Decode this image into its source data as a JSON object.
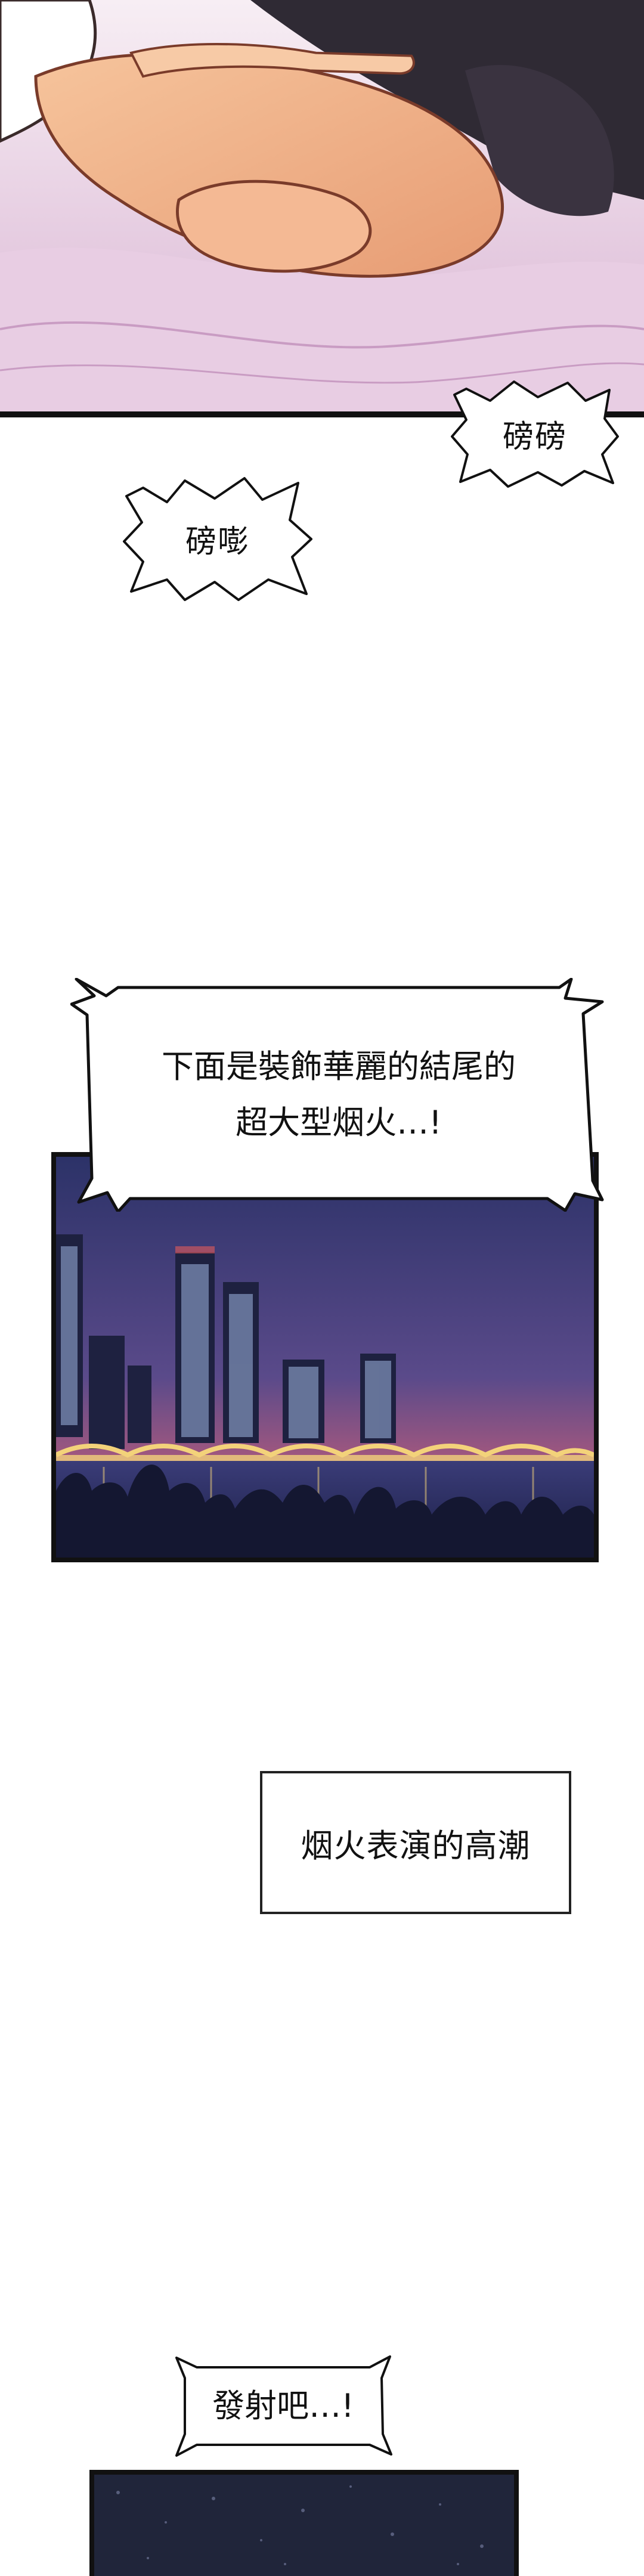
{
  "sfx": {
    "first": "磅磅",
    "second": "磅嘭"
  },
  "dialogue": {
    "announcer_line1": "下面是裝飾華麗的結尾的",
    "announcer_line2": "超大型烟火…!",
    "launch": "發射吧…!"
  },
  "narration": {
    "climax": "烟火表演的高潮"
  },
  "colors": {
    "skin": "#f2b98f",
    "sheet": "#f1dbe8",
    "night_sky": "#3d3a75",
    "bridge_lights": "#f3d27a"
  }
}
